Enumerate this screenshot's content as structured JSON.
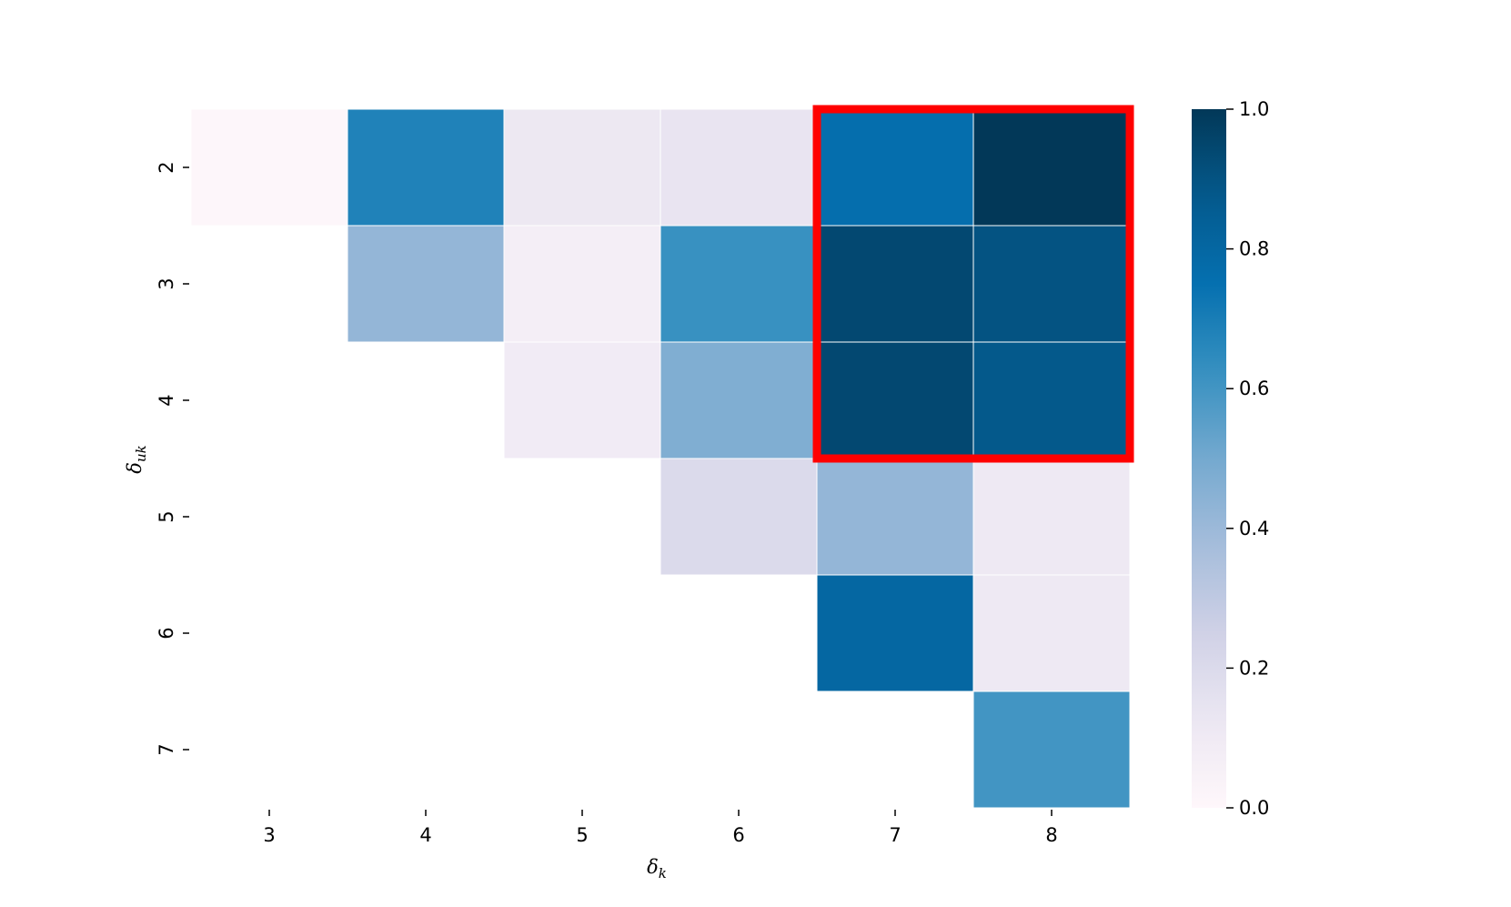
{
  "chart_data": {
    "type": "heatmap",
    "title": "",
    "xlabel": "δ",
    "xlabel_subscript": "k",
    "ylabel": "δ",
    "ylabel_subscript": "uk",
    "x_categories": [
      "3",
      "4",
      "5",
      "6",
      "7",
      "8"
    ],
    "y_categories": [
      "2",
      "3",
      "4",
      "5",
      "6",
      "7"
    ],
    "values": [
      [
        0.01,
        0.68,
        0.12,
        0.14,
        0.76,
        1.0
      ],
      [
        null,
        0.42,
        0.07,
        0.62,
        0.94,
        0.9
      ],
      [
        null,
        null,
        0.09,
        0.47,
        0.94,
        0.88
      ],
      [
        null,
        null,
        null,
        0.2,
        0.42,
        0.11
      ],
      [
        null,
        null,
        null,
        null,
        0.8,
        0.11
      ],
      [
        null,
        null,
        null,
        null,
        null,
        0.6
      ]
    ],
    "colormap": "PuBu",
    "vmin": 0.0,
    "vmax": 1.0,
    "colorbar_ticks": [
      "0.0",
      "0.2",
      "0.4",
      "0.6",
      "0.8",
      "1.0"
    ],
    "highlight": {
      "color": "#ff0000",
      "rows": [
        "2",
        "4"
      ],
      "cols": [
        "7",
        "8"
      ]
    }
  }
}
